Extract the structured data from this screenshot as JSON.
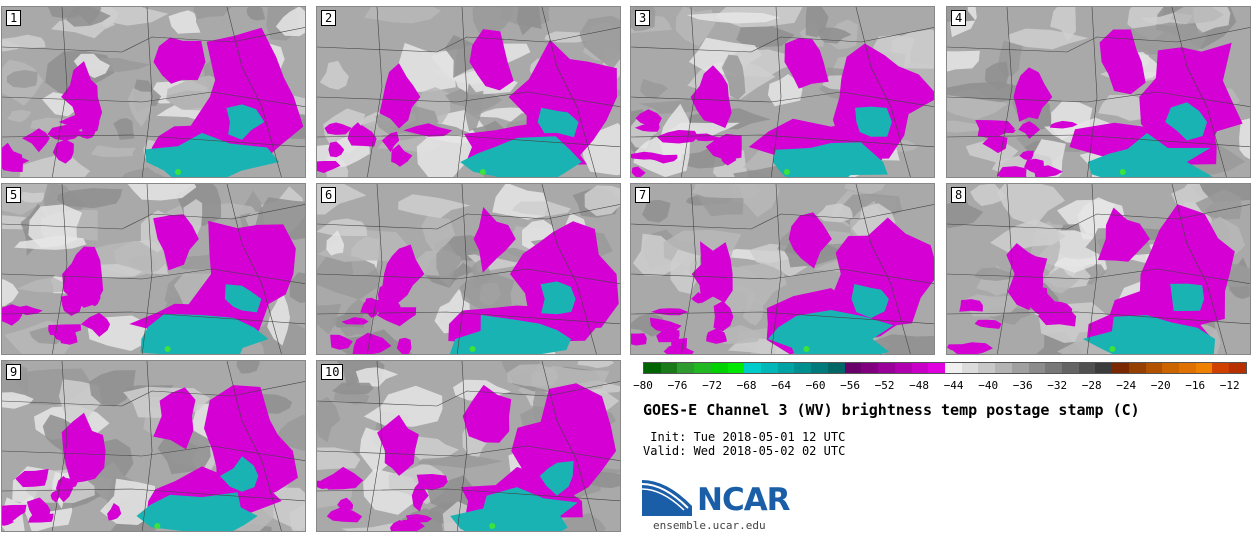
{
  "panels": [
    {
      "label": "1"
    },
    {
      "label": "2"
    },
    {
      "label": "3"
    },
    {
      "label": "4"
    },
    {
      "label": "5"
    },
    {
      "label": "6"
    },
    {
      "label": "7"
    },
    {
      "label": "8"
    },
    {
      "label": "9"
    },
    {
      "label": "10"
    }
  ],
  "colorbar": {
    "colors": [
      "#006400",
      "#1a7a1a",
      "#2e9b2e",
      "#22b822",
      "#00d200",
      "#00e800",
      "#00cccc",
      "#00b8b8",
      "#00a3a3",
      "#008f8f",
      "#007a7a",
      "#006666",
      "#6a006a",
      "#800080",
      "#9a009a",
      "#b000b0",
      "#c800c8",
      "#e000e0",
      "#f0f0f0",
      "#dcdcdc",
      "#c8c8c8",
      "#b4b4b4",
      "#a0a0a0",
      "#8c8c8c",
      "#787878",
      "#646464",
      "#505050",
      "#3c3c3c",
      "#7a2800",
      "#964000",
      "#b25200",
      "#cc6400",
      "#e07000",
      "#f08000",
      "#d04000",
      "#b83000"
    ],
    "ticks": [
      "−80",
      "−76",
      "−72",
      "−68",
      "−64",
      "−60",
      "−56",
      "−52",
      "−48",
      "−44",
      "−40",
      "−36",
      "−32",
      "−28",
      "−24",
      "−20",
      "−16",
      "−12"
    ]
  },
  "title": "GOES-E Channel 3 (WV) brightness temp postage stamp (C)",
  "init": " Init: Tue 2018-05-01 12 UTC",
  "valid": "Valid: Wed 2018-05-02 02 UTC",
  "logo": {
    "name": "NCAR",
    "url": "ensemble.ucar.edu"
  },
  "colors": {
    "magenta": "#d400d4",
    "cyan": "#1ab3b3",
    "gray": "#a9a9a9"
  }
}
